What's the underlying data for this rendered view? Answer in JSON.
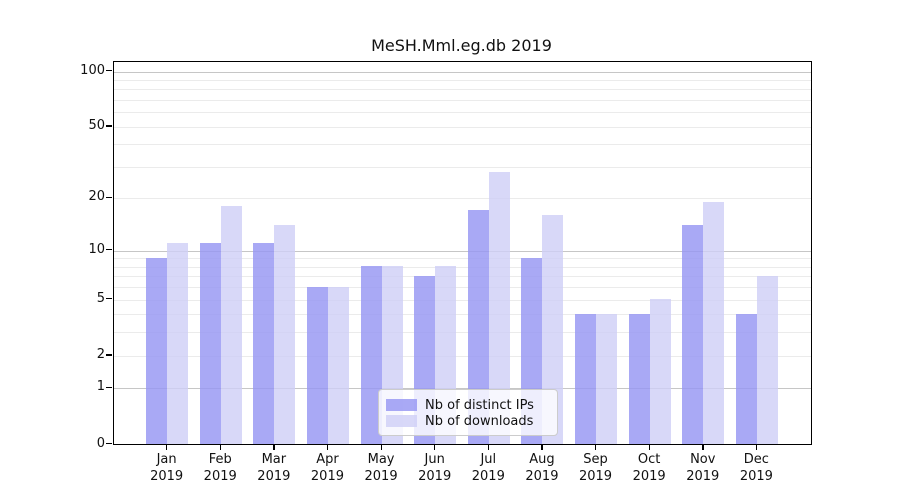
{
  "title": "MeSH.Mml.eg.db 2019",
  "chart_data": {
    "type": "bar",
    "title": "MeSH.Mml.eg.db 2019",
    "scale": "log1p",
    "grid": true,
    "categories": [
      "Jan",
      "Feb",
      "Mar",
      "Apr",
      "May",
      "Jun",
      "Jul",
      "Aug",
      "Sep",
      "Oct",
      "Nov",
      "Dec"
    ],
    "year": "2019",
    "series": [
      {
        "name": "Nb of distinct IPs",
        "color": "rgba(150,150,243,0.82)",
        "values": [
          9,
          11,
          11,
          6,
          8,
          7,
          17,
          9,
          4,
          4,
          14,
          4
        ]
      },
      {
        "name": "Nb of downloads",
        "color": "rgba(206,206,246,0.8)",
        "values": [
          11,
          18,
          14,
          6,
          8,
          8,
          28,
          16,
          4,
          5,
          19,
          7
        ]
      }
    ],
    "y_axis": {
      "tick_values": [
        100,
        50,
        20,
        10,
        5,
        2,
        1,
        0
      ],
      "tick_labels": [
        "100",
        "50",
        "20",
        "10",
        "5",
        "2",
        "1",
        "0"
      ],
      "grid_values": [
        1,
        2,
        3,
        4,
        5,
        6,
        7,
        8,
        9,
        10,
        20,
        30,
        40,
        50,
        60,
        70,
        80,
        90,
        100
      ],
      "decade_values": [
        1,
        10,
        100
      ],
      "ylim": [
        0,
        100
      ]
    },
    "legend": {
      "position": "lower center",
      "entries": [
        "Nb of distinct IPs",
        "Nb of downloads"
      ]
    }
  },
  "colors": {
    "series_ips": "rgba(150,150,243,0.82)",
    "series_downloads": "rgba(206,206,246,0.8)",
    "decade_grid": "#c6c6c6",
    "minor_grid": "#ebebeb",
    "spine": "#000000",
    "text": "#111111",
    "legend_border": "#cccccc",
    "legend_background": "rgba(255,255,255,0.8)"
  }
}
